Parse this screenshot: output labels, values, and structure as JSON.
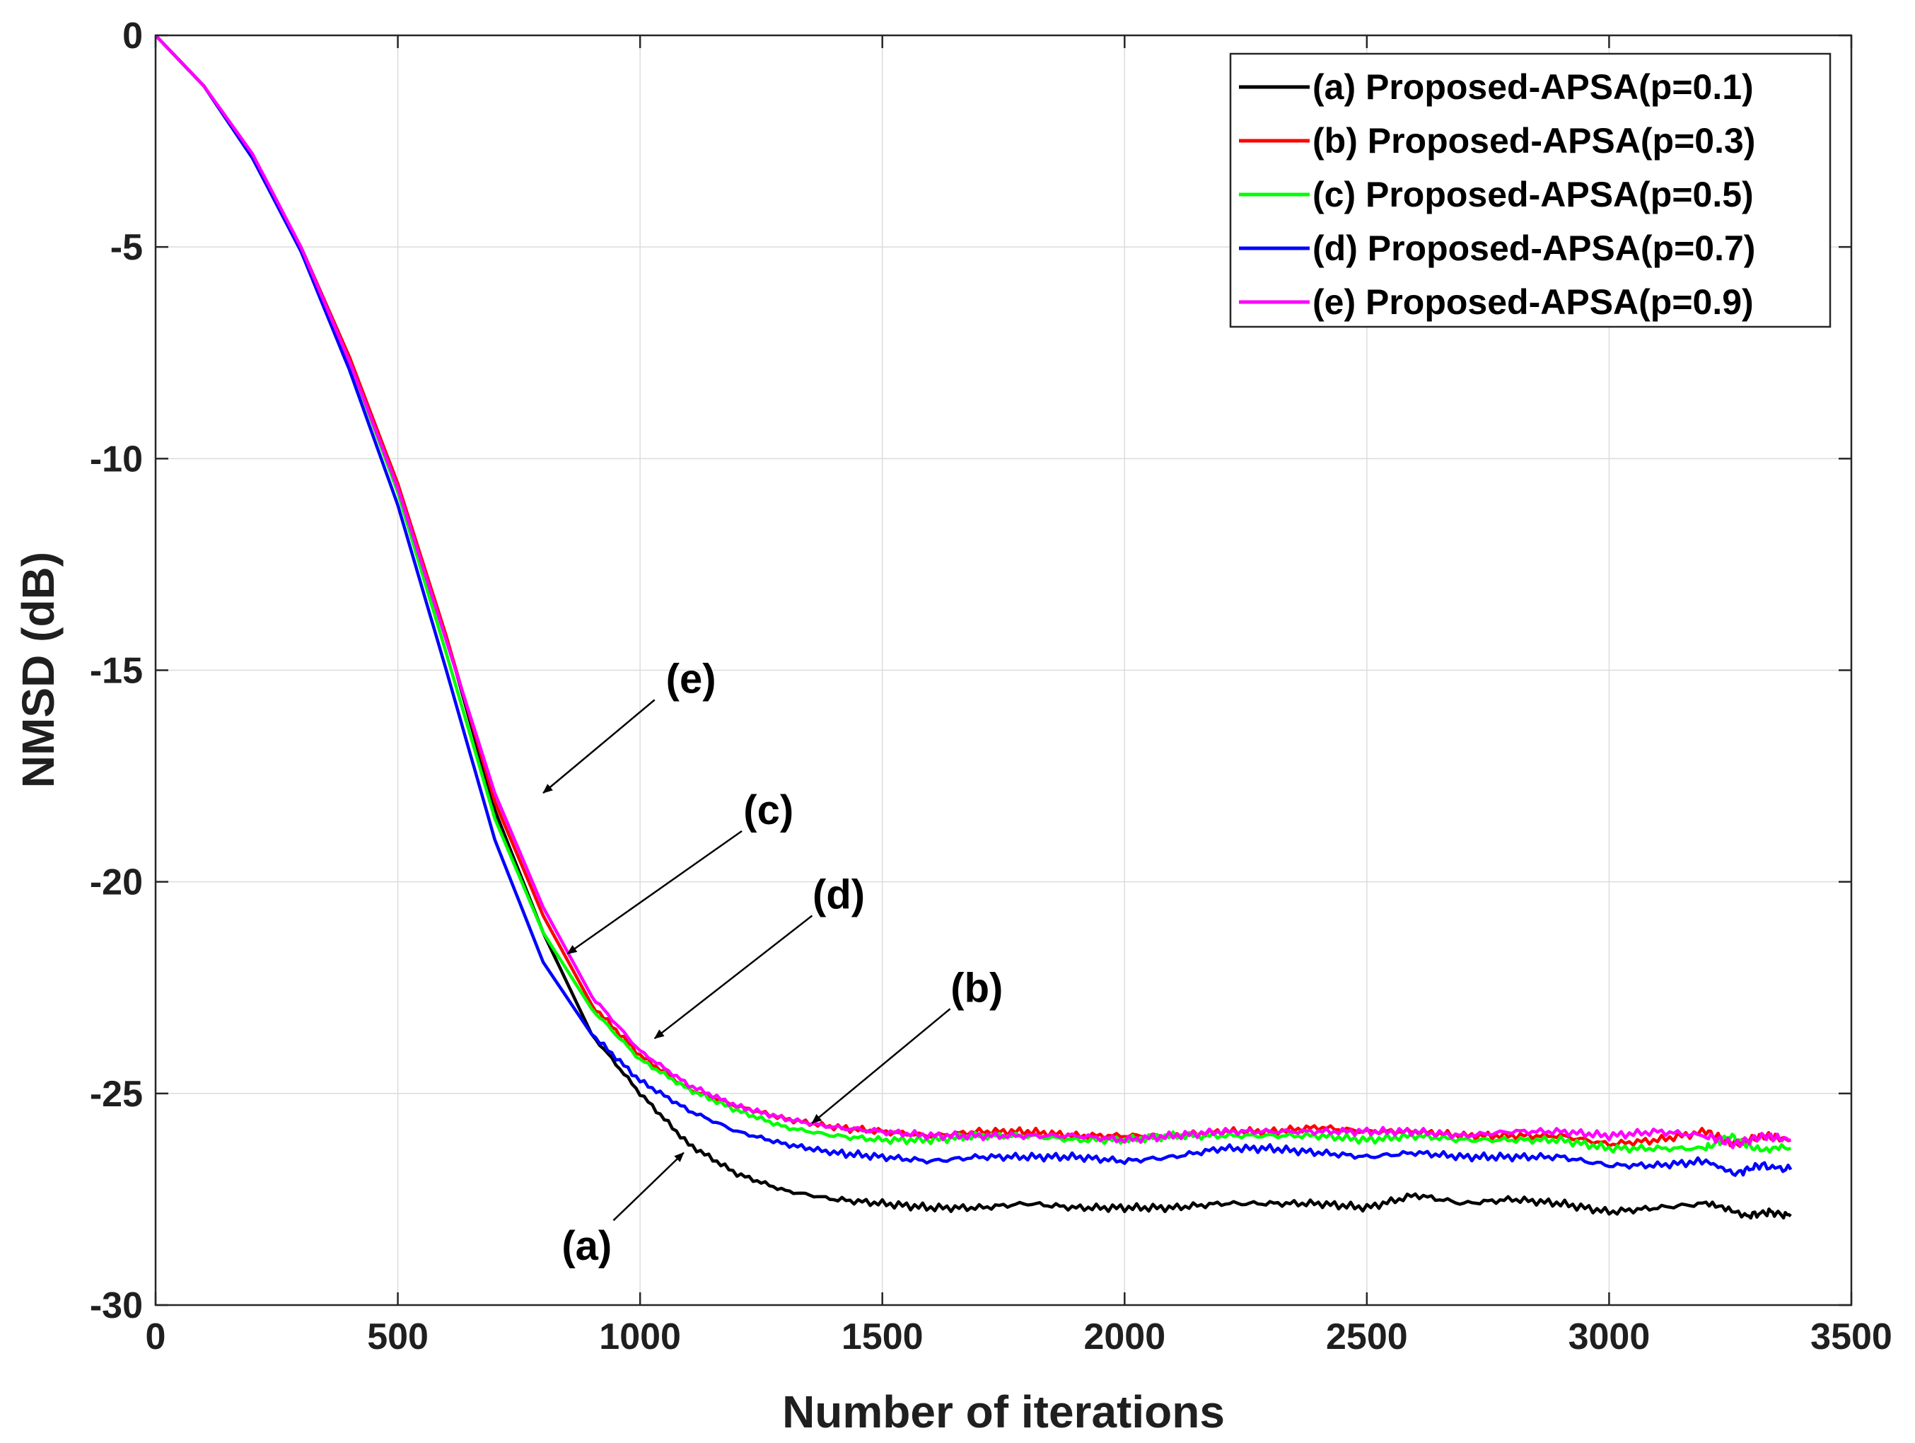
{
  "chart_data": {
    "type": "line",
    "title": "",
    "xlabel": "Number of iterations",
    "ylabel": "NMSD (dB)",
    "xlim": [
      0,
      3500
    ],
    "ylim": [
      -30,
      0
    ],
    "xticks": [
      0,
      500,
      1000,
      1500,
      2000,
      2500,
      3000,
      3500
    ],
    "yticks": [
      0,
      -5,
      -10,
      -15,
      -20,
      -25,
      -30
    ],
    "xtick_labels": [
      "0",
      "500",
      "1000",
      "1500",
      "2000",
      "2500",
      "3000",
      "3500"
    ],
    "ytick_labels": [
      "0",
      "-5",
      "-10",
      "-15",
      "-20",
      "-25",
      "-30"
    ],
    "grid": true,
    "legend_position": "top-right",
    "series": [
      {
        "name": "(a) Proposed-APSA(p=0.1)",
        "color": "#000000",
        "points": [
          [
            0,
            0
          ],
          [
            100,
            -1.2
          ],
          [
            200,
            -2.9
          ],
          [
            300,
            -5.0
          ],
          [
            400,
            -7.6
          ],
          [
            500,
            -10.6
          ],
          [
            600,
            -14.2
          ],
          [
            700,
            -18.3
          ],
          [
            800,
            -21.2
          ],
          [
            900,
            -23.6
          ],
          [
            1000,
            -25.0
          ],
          [
            1100,
            -26.2
          ],
          [
            1200,
            -26.9
          ],
          [
            1300,
            -27.3
          ],
          [
            1400,
            -27.5
          ],
          [
            1500,
            -27.6
          ],
          [
            1600,
            -27.7
          ],
          [
            1700,
            -27.7
          ],
          [
            1800,
            -27.6
          ],
          [
            1900,
            -27.7
          ],
          [
            2000,
            -27.7
          ],
          [
            2100,
            -27.7
          ],
          [
            2200,
            -27.6
          ],
          [
            2300,
            -27.6
          ],
          [
            2400,
            -27.6
          ],
          [
            2500,
            -27.7
          ],
          [
            2600,
            -27.4
          ],
          [
            2700,
            -27.6
          ],
          [
            2800,
            -27.5
          ],
          [
            2900,
            -27.6
          ],
          [
            3000,
            -27.8
          ],
          [
            3100,
            -27.7
          ],
          [
            3200,
            -27.6
          ],
          [
            3280,
            -27.9
          ],
          [
            3330,
            -27.8
          ],
          [
            3375,
            -27.9
          ]
        ]
      },
      {
        "name": "(b) Proposed-APSA(p=0.3)",
        "color": "#ff0000",
        "points": [
          [
            0,
            0
          ],
          [
            100,
            -1.2
          ],
          [
            200,
            -2.9
          ],
          [
            300,
            -5.0
          ],
          [
            400,
            -7.6
          ],
          [
            500,
            -10.6
          ],
          [
            600,
            -14.2
          ],
          [
            700,
            -18.1
          ],
          [
            800,
            -20.8
          ],
          [
            900,
            -22.9
          ],
          [
            1000,
            -24.1
          ],
          [
            1100,
            -24.9
          ],
          [
            1200,
            -25.3
          ],
          [
            1300,
            -25.6
          ],
          [
            1400,
            -25.8
          ],
          [
            1500,
            -25.9
          ],
          [
            1600,
            -26.0
          ],
          [
            1700,
            -25.9
          ],
          [
            1800,
            -25.9
          ],
          [
            1900,
            -26.0
          ],
          [
            2000,
            -26.0
          ],
          [
            2100,
            -26.0
          ],
          [
            2200,
            -25.9
          ],
          [
            2300,
            -25.9
          ],
          [
            2400,
            -25.8
          ],
          [
            2500,
            -25.9
          ],
          [
            2600,
            -25.9
          ],
          [
            2700,
            -26.0
          ],
          [
            2800,
            -26.0
          ],
          [
            2900,
            -26.0
          ],
          [
            3000,
            -26.2
          ],
          [
            3100,
            -26.1
          ],
          [
            3200,
            -25.9
          ],
          [
            3260,
            -26.2
          ],
          [
            3320,
            -26.0
          ],
          [
            3375,
            -26.1
          ]
        ]
      },
      {
        "name": "(c) Proposed-APSA(p=0.5)",
        "color": "#00ff00",
        "points": [
          [
            0,
            0
          ],
          [
            100,
            -1.2
          ],
          [
            200,
            -2.9
          ],
          [
            300,
            -5.0
          ],
          [
            400,
            -7.7
          ],
          [
            500,
            -10.8
          ],
          [
            600,
            -14.6
          ],
          [
            700,
            -18.5
          ],
          [
            800,
            -21.2
          ],
          [
            900,
            -23.0
          ],
          [
            1000,
            -24.2
          ],
          [
            1100,
            -24.9
          ],
          [
            1200,
            -25.4
          ],
          [
            1300,
            -25.8
          ],
          [
            1400,
            -26.0
          ],
          [
            1500,
            -26.1
          ],
          [
            1600,
            -26.1
          ],
          [
            1700,
            -26.0
          ],
          [
            1800,
            -26.0
          ],
          [
            1900,
            -26.1
          ],
          [
            2000,
            -26.1
          ],
          [
            2100,
            -26.0
          ],
          [
            2200,
            -26.0
          ],
          [
            2300,
            -26.0
          ],
          [
            2400,
            -26.0
          ],
          [
            2500,
            -26.1
          ],
          [
            2600,
            -26.0
          ],
          [
            2700,
            -26.1
          ],
          [
            2800,
            -26.1
          ],
          [
            2900,
            -26.1
          ],
          [
            3000,
            -26.3
          ],
          [
            3100,
            -26.3
          ],
          [
            3200,
            -26.3
          ],
          [
            3250,
            -26.0
          ],
          [
            3300,
            -26.3
          ],
          [
            3375,
            -26.3
          ]
        ]
      },
      {
        "name": "(d) Proposed-APSA(p=0.7)",
        "color": "#0000ff",
        "points": [
          [
            0,
            0
          ],
          [
            100,
            -1.2
          ],
          [
            200,
            -2.9
          ],
          [
            300,
            -5.1
          ],
          [
            400,
            -7.9
          ],
          [
            500,
            -11.1
          ],
          [
            600,
            -15.0
          ],
          [
            700,
            -19.0
          ],
          [
            800,
            -21.9
          ],
          [
            900,
            -23.6
          ],
          [
            1000,
            -24.7
          ],
          [
            1100,
            -25.4
          ],
          [
            1200,
            -25.9
          ],
          [
            1300,
            -26.2
          ],
          [
            1400,
            -26.4
          ],
          [
            1500,
            -26.5
          ],
          [
            1600,
            -26.6
          ],
          [
            1700,
            -26.5
          ],
          [
            1800,
            -26.5
          ],
          [
            1900,
            -26.5
          ],
          [
            2000,
            -26.6
          ],
          [
            2100,
            -26.5
          ],
          [
            2200,
            -26.3
          ],
          [
            2300,
            -26.3
          ],
          [
            2400,
            -26.4
          ],
          [
            2500,
            -26.5
          ],
          [
            2600,
            -26.4
          ],
          [
            2700,
            -26.5
          ],
          [
            2800,
            -26.5
          ],
          [
            2900,
            -26.5
          ],
          [
            3000,
            -26.7
          ],
          [
            3100,
            -26.7
          ],
          [
            3200,
            -26.6
          ],
          [
            3260,
            -26.9
          ],
          [
            3310,
            -26.7
          ],
          [
            3375,
            -26.8
          ]
        ]
      },
      {
        "name": "(e) Proposed-APSA(p=0.9)",
        "color": "#ff00ff",
        "points": [
          [
            0,
            0
          ],
          [
            100,
            -1.2
          ],
          [
            200,
            -2.8
          ],
          [
            300,
            -5.0
          ],
          [
            400,
            -7.7
          ],
          [
            500,
            -10.7
          ],
          [
            600,
            -14.3
          ],
          [
            700,
            -17.9
          ],
          [
            800,
            -20.6
          ],
          [
            900,
            -22.7
          ],
          [
            1000,
            -24.0
          ],
          [
            1100,
            -24.8
          ],
          [
            1200,
            -25.3
          ],
          [
            1300,
            -25.6
          ],
          [
            1400,
            -25.8
          ],
          [
            1500,
            -25.9
          ],
          [
            1600,
            -26.0
          ],
          [
            1700,
            -26.0
          ],
          [
            1800,
            -26.0
          ],
          [
            1900,
            -26.0
          ],
          [
            2000,
            -26.1
          ],
          [
            2100,
            -26.0
          ],
          [
            2200,
            -25.9
          ],
          [
            2300,
            -25.9
          ],
          [
            2400,
            -25.9
          ],
          [
            2500,
            -25.9
          ],
          [
            2600,
            -25.9
          ],
          [
            2700,
            -26.0
          ],
          [
            2800,
            -25.9
          ],
          [
            2900,
            -25.9
          ],
          [
            3000,
            -26.0
          ],
          [
            3100,
            -25.9
          ],
          [
            3200,
            -26.0
          ],
          [
            3260,
            -26.2
          ],
          [
            3320,
            -26.0
          ],
          [
            3375,
            -26.1
          ]
        ]
      }
    ],
    "annotations": [
      {
        "label": "(e)",
        "text_at": [
          1105,
          -15.2
        ],
        "arrow_from": [
          1030,
          -15.7
        ],
        "arrow_to": [
          800,
          -17.9
        ]
      },
      {
        "label": "(c)",
        "text_at": [
          1265,
          -18.3
        ],
        "arrow_from": [
          1210,
          -18.8
        ],
        "arrow_to": [
          850,
          -21.7
        ]
      },
      {
        "label": "(d)",
        "text_at": [
          1410,
          -20.3
        ],
        "arrow_from": [
          1355,
          -20.8
        ],
        "arrow_to": [
          1030,
          -23.7
        ]
      },
      {
        "label": "(b)",
        "text_at": [
          1695,
          -22.5
        ],
        "arrow_from": [
          1640,
          -23.0
        ],
        "arrow_to": [
          1355,
          -25.7
        ]
      },
      {
        "label": "(a)",
        "text_at": [
          890,
          -28.6
        ],
        "arrow_from": [
          945,
          -28.0
        ],
        "arrow_to": [
          1090,
          -26.4
        ]
      }
    ]
  }
}
